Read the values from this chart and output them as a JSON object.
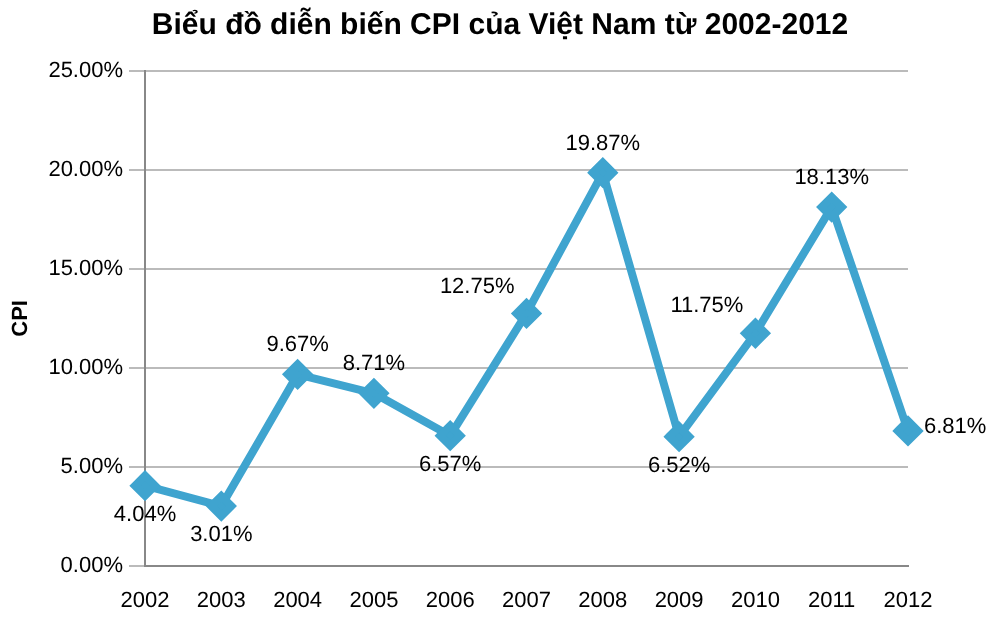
{
  "chart_data": {
    "type": "line",
    "title": "Biểu đồ diễn biến CPI của Việt Nam từ 2002-2012",
    "ylabel": "CPI",
    "categories": [
      "2002",
      "2003",
      "2004",
      "2005",
      "2006",
      "2007",
      "2008",
      "2009",
      "2010",
      "2011",
      "2012"
    ],
    "series": [
      {
        "color": "#3fa4cf",
        "values": [
          4.04,
          3.01,
          9.67,
          8.71,
          6.57,
          12.75,
          19.87,
          6.52,
          11.75,
          18.13,
          6.81
        ],
        "value_labels": [
          "4.04%",
          "3.01%",
          "9.67%",
          "8.71%",
          "6.57%",
          "12.75%",
          "19.87%",
          "6.52%",
          "11.75%",
          "18.13%",
          "6.81%"
        ]
      }
    ],
    "ylim": [
      0,
      25
    ],
    "yticks": [
      {
        "value": 0,
        "label": "0.00%"
      },
      {
        "value": 5,
        "label": "5.00%"
      },
      {
        "value": 10,
        "label": "10.00%"
      },
      {
        "value": 15,
        "label": "15.00%"
      },
      {
        "value": 20,
        "label": "20.00%"
      },
      {
        "value": 25,
        "label": "25.00%"
      }
    ],
    "grid": "y",
    "legend": false,
    "marker": "diamond",
    "line_style": "solid"
  }
}
